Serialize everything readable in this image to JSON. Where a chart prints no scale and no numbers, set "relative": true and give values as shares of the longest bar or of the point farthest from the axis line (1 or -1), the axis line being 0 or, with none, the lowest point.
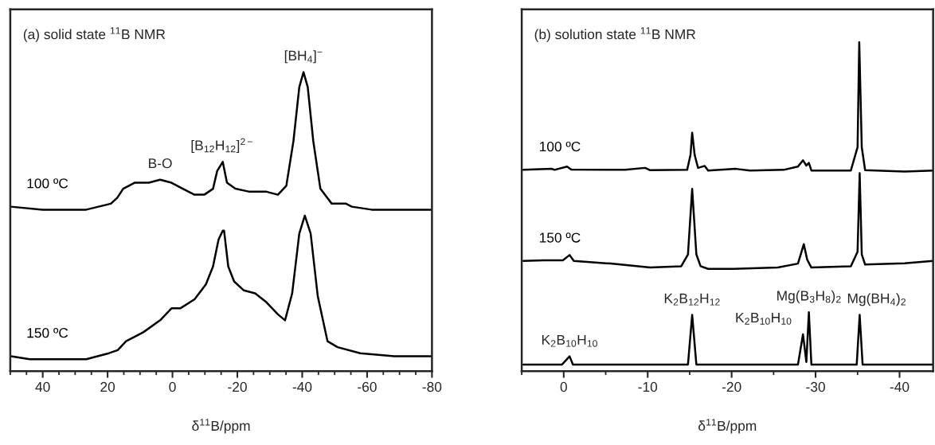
{
  "chart_data": [
    {
      "type": "line",
      "title": "(a) solid state $^{11}$B NMR",
      "xlabel": "δ$^{11}$B/ppm",
      "relative": true,
      "tick_labels": "x",
      "xlim": [
        50,
        -80
      ],
      "xticks": [
        40,
        20,
        0,
        -20,
        -40,
        -60,
        -80
      ],
      "series": [
        {
          "name": "100 ºC",
          "color": "#000000",
          "x": [
            49.8,
            40,
            26.6,
            19,
            17,
            15.2,
            11.7,
            7.3,
            3.8,
            0.3,
            -3.2,
            -6.8,
            -9.8,
            -12.5,
            -13.8,
            -15.5,
            -16.8,
            -19.4,
            -23.8,
            -29,
            -32.5,
            -35.1,
            -37.3,
            -39.1,
            -40.4,
            -41.7,
            -43.4,
            -45.6,
            -49.1,
            -52.6,
            -53.5,
            -55.3,
            -61.4,
            -80
          ],
          "values": [
            0.55,
            0.54,
            0.54,
            0.56,
            0.58,
            0.61,
            0.63,
            0.63,
            0.64,
            0.63,
            0.61,
            0.59,
            0.59,
            0.61,
            0.67,
            0.7,
            0.63,
            0.61,
            0.6,
            0.6,
            0.59,
            0.62,
            0.77,
            0.95,
            1.0,
            0.95,
            0.77,
            0.61,
            0.56,
            0.56,
            0.56,
            0.55,
            0.54,
            0.54
          ]
        },
        {
          "name": "150 ºC",
          "color": "#000000",
          "x": [
            49.8,
            44,
            35,
            26.6,
            19.6,
            16.9,
            14.3,
            9,
            3.8,
            0.3,
            -2.4,
            -6.8,
            -10.3,
            -12.5,
            -14.2,
            -15.5,
            -15.9,
            -17.2,
            -19,
            -22,
            -25.5,
            -29,
            -32.5,
            -34.7,
            -36.9,
            -39.1,
            -40.8,
            -42.6,
            -44.8,
            -47.8,
            -50.9,
            -57.9,
            -68.4,
            -80
          ],
          "values": [
            0.05,
            0.04,
            0.04,
            0.04,
            0.06,
            0.07,
            0.1,
            0.13,
            0.17,
            0.21,
            0.21,
            0.24,
            0.29,
            0.35,
            0.44,
            0.47,
            0.47,
            0.35,
            0.3,
            0.27,
            0.26,
            0.23,
            0.19,
            0.17,
            0.26,
            0.46,
            0.52,
            0.46,
            0.25,
            0.1,
            0.08,
            0.06,
            0.05,
            0.05
          ]
        }
      ],
      "annotations": [
        {
          "text": "B-O",
          "x": 3.8,
          "y": 0.64
        },
        {
          "text": "[B$_{12}$H$_{12}$]$^{2−}$",
          "x": -15.5,
          "y": 0.7
        },
        {
          "text": "[BH$_{4}$]$^{−}$",
          "x": -40.4,
          "y": 1.0
        }
      ]
    },
    {
      "type": "line",
      "title": "(b) solution state $^{11}$B NMR",
      "xlabel": "δ$^{11}$B/ppm",
      "relative": true,
      "tick_labels": "x",
      "xlim": [
        5,
        -44
      ],
      "xticks": [
        0,
        -10,
        -20,
        -30,
        -40
      ],
      "series": [
        {
          "name": "100 ºC",
          "color": "#000000",
          "x": [
            4.8,
            1.4,
            1.1,
            -0.4,
            -0.9,
            -7.3,
            -9.7,
            -10.3,
            -14.7,
            -15.1,
            -15.3,
            -15.6,
            -16,
            -16.8,
            -17.2,
            -20.5,
            -22.2,
            -26.2,
            -27.9,
            -28.5,
            -28.9,
            -29.2,
            -29.5,
            -34.2,
            -35,
            -35.2,
            -35.5,
            -35.9,
            -40.6,
            -44
          ],
          "values": [
            0.612,
            0.615,
            0.612,
            0.622,
            0.613,
            0.612,
            0.618,
            0.611,
            0.612,
            0.657,
            0.725,
            0.657,
            0.618,
            0.624,
            0.61,
            0.615,
            0.61,
            0.612,
            0.622,
            0.641,
            0.625,
            0.633,
            0.61,
            0.61,
            0.681,
            1.0,
            0.681,
            0.611,
            0.607,
            0.61
          ]
        },
        {
          "name": "150 ºC",
          "color": "#000000",
          "x": [
            4.8,
            2.4,
            0.1,
            -0.7,
            -1.2,
            -5.6,
            -10.3,
            -14,
            -14.8,
            -15.3,
            -15.8,
            -16.3,
            -17.2,
            -20.2,
            -25.5,
            -27.9,
            -28.6,
            -29,
            -29.5,
            -34.2,
            -35,
            -35.25,
            -35.5,
            -35.9,
            -40.6,
            -44
          ],
          "values": [
            0.335,
            0.337,
            0.337,
            0.353,
            0.335,
            0.327,
            0.315,
            0.319,
            0.355,
            0.554,
            0.355,
            0.319,
            0.311,
            0.311,
            0.315,
            0.327,
            0.386,
            0.339,
            0.315,
            0.319,
            0.363,
            0.602,
            0.355,
            0.324,
            0.328,
            0.335
          ]
        },
        {
          "color": "#000000",
          "x": [
            4.8,
            0.2,
            -0.7,
            -1.1,
            -14.8,
            -15.3,
            -15.8,
            -27.9,
            -28.5,
            -28.9,
            -29.2,
            -29.5,
            -34.9,
            -35.25,
            -35.6,
            -44
          ],
          "values": [
            0.02,
            0.02,
            0.045,
            0.02,
            0.02,
            0.171,
            0.02,
            0.02,
            0.112,
            0.028,
            0.179,
            0.02,
            0.02,
            0.171,
            0.02,
            0.02
          ]
        }
      ],
      "annotations": [
        {
          "text": "K$_{2}$B$_{10}$H$_{10}$",
          "x": -0.7,
          "y": 0.045
        },
        {
          "text": "K$_{2}$B$_{12}$H$_{12}$",
          "x": -15.3,
          "y": 0.171
        },
        {
          "text": "Mg(B$_{3}$H$_{8}$)$_{2}$",
          "x": -29.2,
          "y": 0.179
        },
        {
          "text": "Mg(BH$_{4}$)$_{2}$",
          "x": -35.25,
          "y": 0.171
        },
        {
          "text": "K$_{2}$B$_{10}$H$_{10}$",
          "x": -28.5,
          "y": 0.112
        }
      ]
    }
  ]
}
